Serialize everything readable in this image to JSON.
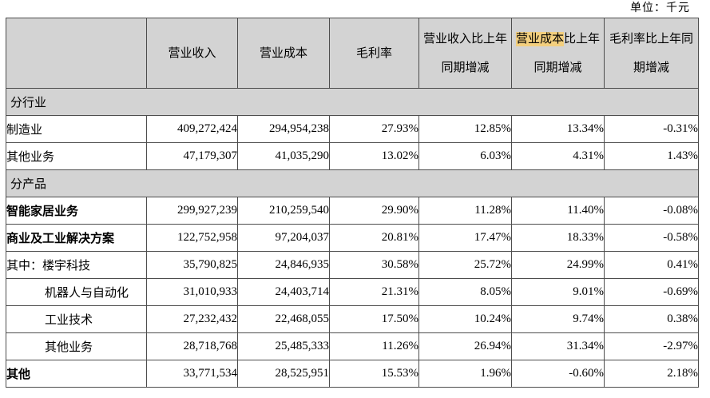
{
  "unit_label": "单位：千元",
  "colors": {
    "header_bg": "#d3d3d3",
    "section_bg": "#d3d3d3",
    "highlight_bg": "#f3cf7e",
    "border": "#4d4d4d"
  },
  "table": {
    "header": [
      {
        "name": "blank",
        "lines": [
          [
            {
              "t": ""
            }
          ]
        ]
      },
      {
        "name": "operating-revenue",
        "lines": [
          [
            {
              "t": "营业收入"
            }
          ]
        ]
      },
      {
        "name": "operating-cost",
        "lines": [
          [
            {
              "t": "营业成本"
            }
          ]
        ]
      },
      {
        "name": "gross-margin",
        "lines": [
          [
            {
              "t": "毛利率"
            }
          ]
        ]
      },
      {
        "name": "revenue-yoy-change",
        "lines": [
          [
            {
              "t": "营业收入比上年"
            }
          ],
          [
            {
              "t": "同期增减"
            }
          ]
        ]
      },
      {
        "name": "cost-yoy-change",
        "lines": [
          [
            {
              "t": "营业成本",
              "hl": true
            },
            {
              "t": "比上年"
            }
          ],
          [
            {
              "t": "同期增减"
            }
          ]
        ]
      },
      {
        "name": "margin-yoy-change",
        "lines": [
          [
            {
              "t": "毛利率比上年同"
            }
          ],
          [
            {
              "t": "期增减"
            }
          ]
        ]
      }
    ],
    "rows": [
      {
        "type": "section",
        "label": "分行业"
      },
      {
        "type": "data",
        "label": "制造业",
        "values": [
          "409,272,424",
          "294,954,238",
          "27.93%",
          "12.85%",
          "13.34%",
          "-0.31%"
        ]
      },
      {
        "type": "data",
        "label": "其他业务",
        "values": [
          "47,179,307",
          "41,035,290",
          "13.02%",
          "6.03%",
          "4.31%",
          "1.43%"
        ]
      },
      {
        "type": "section",
        "label": "分产品"
      },
      {
        "type": "data",
        "label": "智能家居业务",
        "bold": true,
        "values": [
          "299,927,239",
          "210,259,540",
          "29.90%",
          "11.28%",
          "11.40%",
          "-0.08%"
        ]
      },
      {
        "type": "data",
        "label": "商业及工业解决方案",
        "bold": true,
        "values": [
          "122,752,958",
          "97,204,037",
          "20.81%",
          "17.47%",
          "18.33%",
          "-0.58%"
        ]
      },
      {
        "type": "data",
        "label": "其中：楼宇科技",
        "values": [
          "35,790,825",
          "24,846,935",
          "30.58%",
          "25.72%",
          "24.99%",
          "0.41%"
        ]
      },
      {
        "type": "data",
        "label": "机器人与自动化",
        "indent": true,
        "values": [
          "31,010,933",
          "24,403,714",
          "21.31%",
          "8.05%",
          "9.01%",
          "-0.69%"
        ]
      },
      {
        "type": "data",
        "label": "工业技术",
        "indent": true,
        "values": [
          "27,232,432",
          "22,468,055",
          "17.50%",
          "10.24%",
          "9.74%",
          "0.38%"
        ]
      },
      {
        "type": "data",
        "label": "其他业务",
        "indent": true,
        "values": [
          "28,718,768",
          "25,485,333",
          "11.26%",
          "26.94%",
          "31.34%",
          "-2.97%"
        ]
      },
      {
        "type": "data",
        "label": "其他",
        "bold": true,
        "values": [
          "33,771,534",
          "28,525,951",
          "15.53%",
          "1.96%",
          "-0.60%",
          "2.18%"
        ]
      }
    ]
  }
}
